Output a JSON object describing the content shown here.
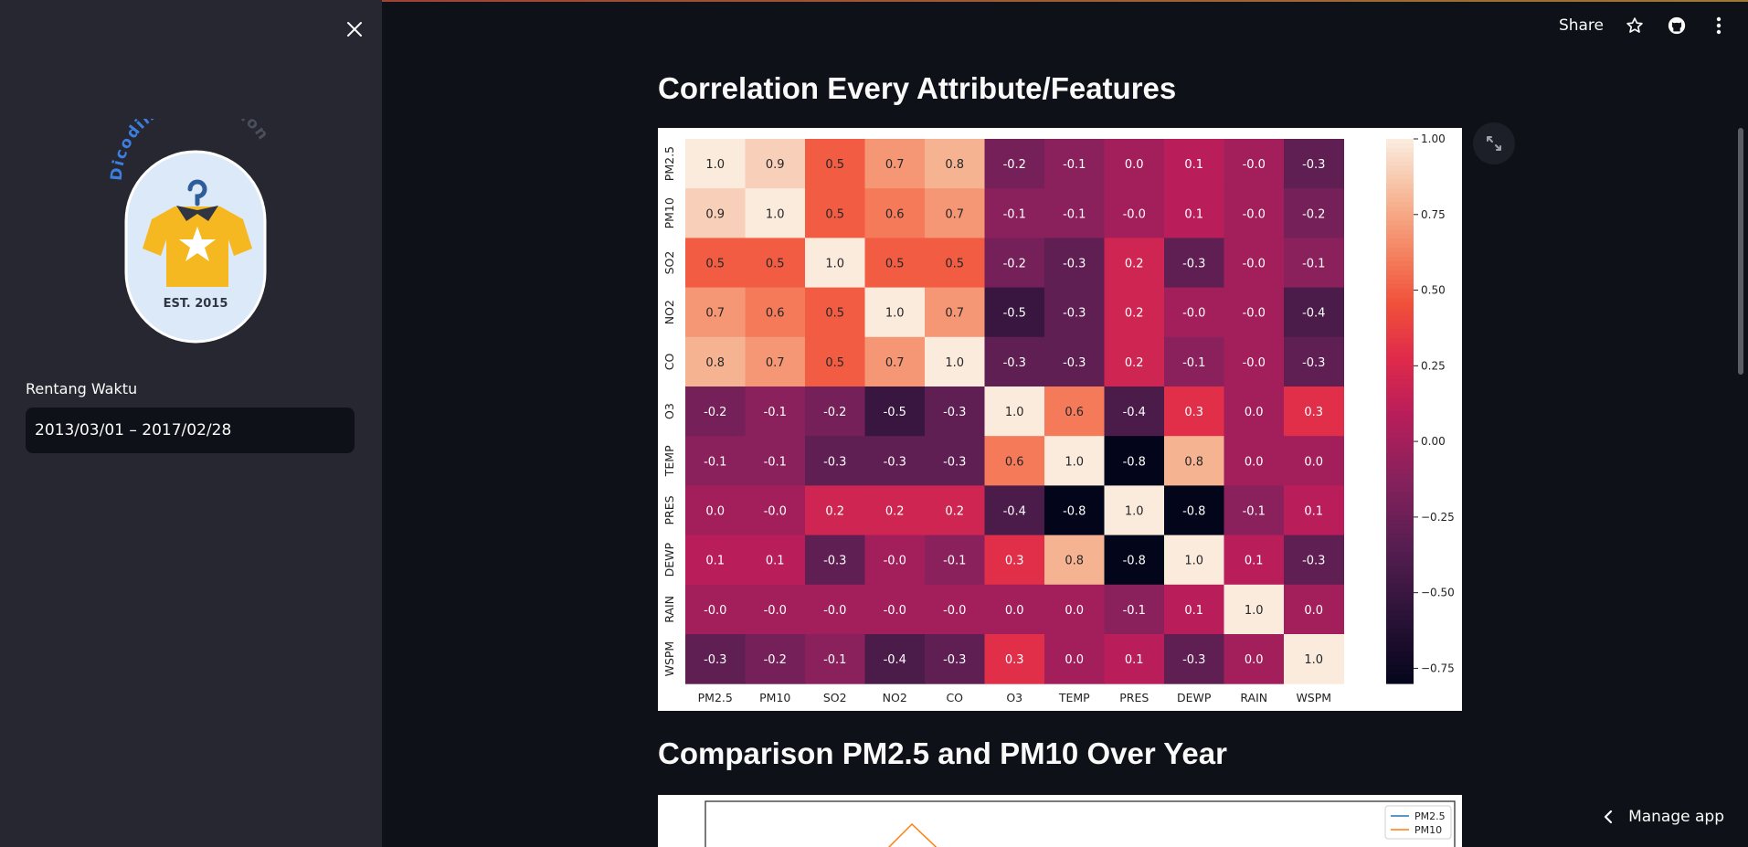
{
  "sidebar": {
    "logo": {
      "brand_text": "Dicoding Collection",
      "badge_text": "EST. 2015"
    },
    "date_label": "Rentang Waktu",
    "date_range": "2013/03/01 – 2017/02/28"
  },
  "header": {
    "share_label": "Share"
  },
  "main": {
    "section1_title": "Correlation Every Attribute/Features",
    "section2_title": "Comparison PM2.5 and PM10 Over Year",
    "manage_app_label": "Manage app"
  },
  "chart_data": [
    {
      "type": "heatmap",
      "labels": [
        "PM2.5",
        "PM10",
        "SO2",
        "NO2",
        "CO",
        "O3",
        "TEMP",
        "PRES",
        "DEWP",
        "RAIN",
        "WSPM"
      ],
      "values": [
        [
          "1.0",
          "0.9",
          "0.5",
          "0.7",
          "0.8",
          "-0.2",
          "-0.1",
          "0.0",
          "0.1",
          "-0.0",
          "-0.3"
        ],
        [
          "0.9",
          "1.0",
          "0.5",
          "0.6",
          "0.7",
          "-0.1",
          "-0.1",
          "-0.0",
          "0.1",
          "-0.0",
          "-0.2"
        ],
        [
          "0.5",
          "0.5",
          "1.0",
          "0.5",
          "0.5",
          "-0.2",
          "-0.3",
          "0.2",
          "-0.3",
          "-0.0",
          "-0.1"
        ],
        [
          "0.7",
          "0.6",
          "0.5",
          "1.0",
          "0.7",
          "-0.5",
          "-0.3",
          "0.2",
          "-0.0",
          "-0.0",
          "-0.4"
        ],
        [
          "0.8",
          "0.7",
          "0.5",
          "0.7",
          "1.0",
          "-0.3",
          "-0.3",
          "0.2",
          "-0.1",
          "-0.0",
          "-0.3"
        ],
        [
          "-0.2",
          "-0.1",
          "-0.2",
          "-0.5",
          "-0.3",
          "1.0",
          "0.6",
          "-0.4",
          "0.3",
          "0.0",
          "0.3"
        ],
        [
          "-0.1",
          "-0.1",
          "-0.3",
          "-0.3",
          "-0.3",
          "0.6",
          "1.0",
          "-0.8",
          "0.8",
          "0.0",
          "0.0"
        ],
        [
          "0.0",
          "-0.0",
          "0.2",
          "0.2",
          "0.2",
          "-0.4",
          "-0.8",
          "1.0",
          "-0.8",
          "-0.1",
          "0.1"
        ],
        [
          "0.1",
          "0.1",
          "-0.3",
          "-0.0",
          "-0.1",
          "0.3",
          "0.8",
          "-0.8",
          "1.0",
          "0.1",
          "-0.3"
        ],
        [
          "-0.0",
          "-0.0",
          "-0.0",
          "-0.0",
          "-0.0",
          "0.0",
          "0.0",
          "-0.1",
          "0.1",
          "1.0",
          "0.0"
        ],
        [
          "-0.3",
          "-0.2",
          "-0.1",
          "-0.4",
          "-0.3",
          "0.3",
          "0.0",
          "0.1",
          "-0.3",
          "0.0",
          "1.0"
        ]
      ],
      "colorbar": {
        "ticks": [
          "1.00",
          "0.75",
          "0.50",
          "0.25",
          "0.00",
          "−0.25",
          "−0.50",
          "−0.75"
        ],
        "range": [
          -0.8,
          1.0
        ],
        "colormap": "rocket"
      }
    },
    {
      "type": "line",
      "series": [
        {
          "name": "PM2.5",
          "color": "#1f77b4"
        },
        {
          "name": "PM10",
          "color": "#ff7f0e"
        }
      ]
    }
  ]
}
